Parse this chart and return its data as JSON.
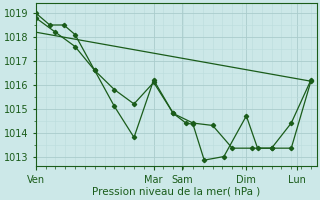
{
  "background_color": "#cce8e8",
  "grid_color_major": "#aacccc",
  "grid_color_minor": "#bbdddd",
  "line_color": "#1a5c1a",
  "xlabel": "Pression niveau de la mer( hPa )",
  "ylim": [
    1012.6,
    1019.4
  ],
  "yticks": [
    1013,
    1014,
    1015,
    1016,
    1017,
    1018,
    1019
  ],
  "day_labels": [
    "Ven",
    "Mar",
    "Sam",
    "Dim",
    "Lun"
  ],
  "day_positions": [
    0.0,
    0.42,
    0.52,
    0.75,
    0.93
  ],
  "xlim": [
    0.0,
    1.0
  ],
  "series1_x": [
    0.0,
    0.07,
    0.14,
    0.21,
    0.28,
    0.35,
    0.42,
    0.49,
    0.56,
    0.63,
    0.7,
    0.77,
    0.84,
    0.91,
    0.98
  ],
  "series1_y": [
    1018.8,
    1018.2,
    1017.6,
    1016.6,
    1015.8,
    1015.2,
    1016.1,
    1014.8,
    1014.4,
    1014.3,
    1013.35,
    1013.35,
    1013.35,
    1013.35,
    1016.15
  ],
  "series2_x": [
    0.0,
    0.05,
    0.1,
    0.14,
    0.21,
    0.28,
    0.35,
    0.42,
    0.49,
    0.535,
    0.56,
    0.6,
    0.67,
    0.75,
    0.79,
    0.84,
    0.91,
    0.98
  ],
  "series2_y": [
    1019.0,
    1018.5,
    1018.5,
    1018.1,
    1016.6,
    1015.1,
    1013.8,
    1016.2,
    1014.8,
    1014.4,
    1014.35,
    1012.85,
    1013.0,
    1014.7,
    1013.35,
    1013.35,
    1014.4,
    1016.2
  ],
  "series3_x": [
    0.0,
    0.98
  ],
  "series3_y": [
    1018.2,
    1016.15
  ]
}
